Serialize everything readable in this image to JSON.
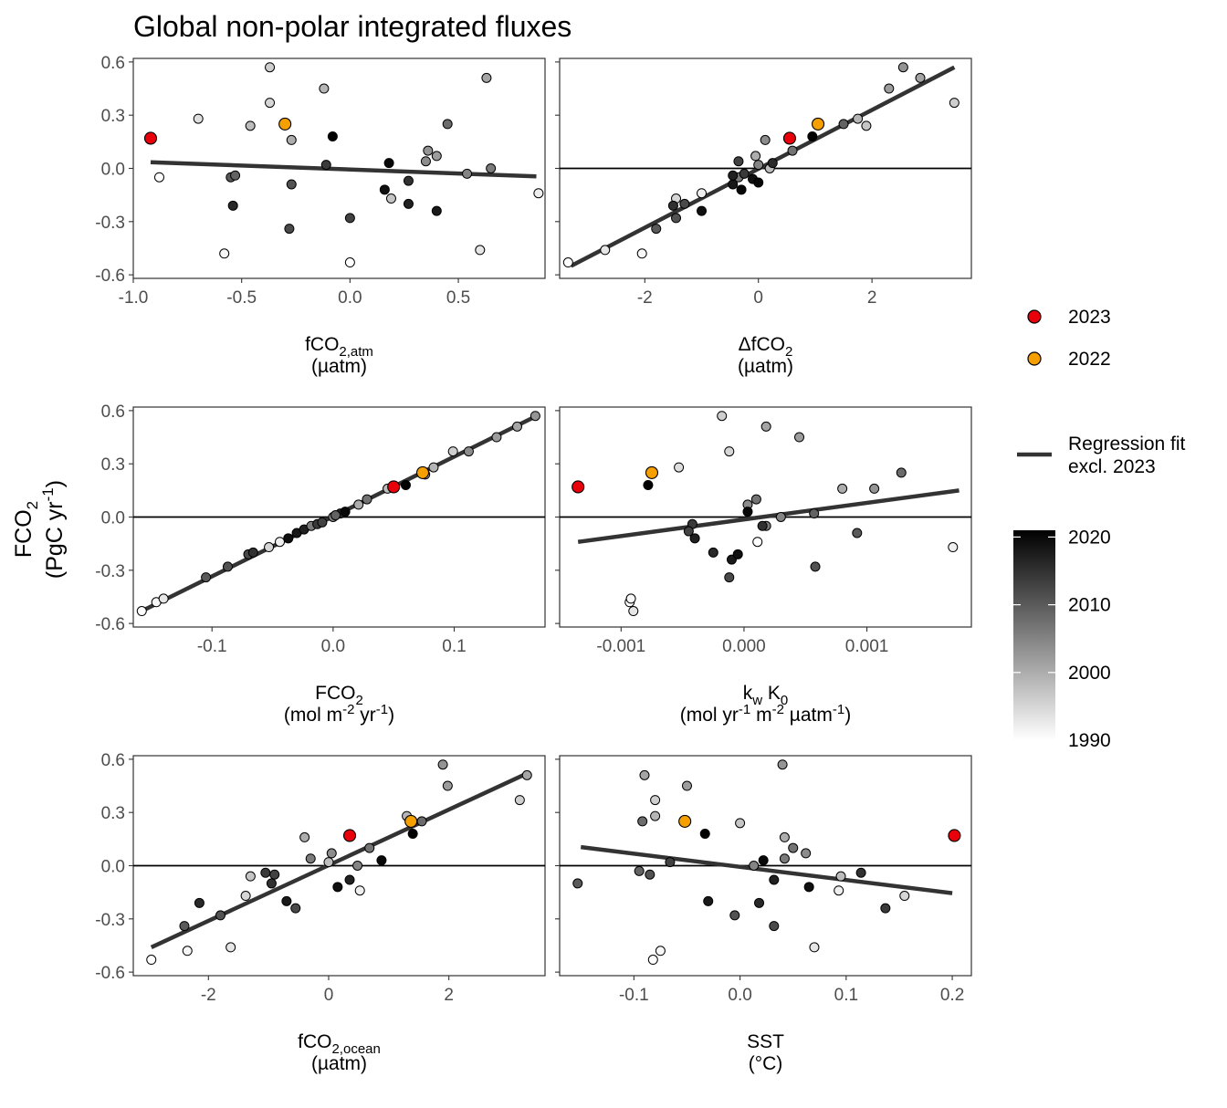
{
  "title": "Global non-polar integrated fluxes",
  "y_axis": {
    "label_main": "FCO",
    "label_sub": "2",
    "label_unit_main": "(PgC yr",
    "label_unit_sup": "-1",
    "label_unit_end": ")"
  },
  "legend": {
    "points": [
      {
        "label": "2023",
        "color": "#e8000b"
      },
      {
        "label": "2022",
        "color": "#f5a000"
      }
    ],
    "line": {
      "label_line1": "Regression fit",
      "label_line2": "excl. 2023",
      "color": "#333333"
    },
    "colorbar": {
      "ticks": [
        "2020",
        "2010",
        "2000",
        "1990"
      ],
      "range": [
        1990,
        2021
      ],
      "low_color": "#ffffff",
      "high_color": "#000000"
    }
  },
  "panels": [
    {
      "xlabel_html": "fCO<tspan dy='6' font-size='15'>2,atm</tspan>",
      "xunit": "(µatm)"
    },
    {
      "xlabel_html": "ΔfCO<tspan dy='6' font-size='15'>2</tspan>",
      "xunit": "(µatm)"
    },
    {
      "xlabel_html": "FCO<tspan dy='6' font-size='15'>2</tspan>",
      "xunit_html": "(mol m<tspan dy='-8' font-size='15'>-2</tspan><tspan dy='8'> yr</tspan><tspan dy='-8' font-size='15'>-1</tspan><tspan dy='8'>)</tspan>"
    },
    {
      "xlabel_html": "k<tspan dy='6' font-size='15'>w</tspan><tspan dy='-6'> K</tspan><tspan dy='6' font-size='15'>0</tspan>",
      "xunit_html": "(mol yr<tspan dy='-8' font-size='15'>-1</tspan><tspan dy='8'> m</tspan><tspan dy='-8' font-size='15'>-2</tspan><tspan dy='8'> µatm</tspan><tspan dy='-8' font-size='15'>-1</tspan><tspan dy='8'>)</tspan>"
    },
    {
      "xlabel_html": "fCO<tspan dy='6' font-size='15'>2,ocean</tspan>",
      "xunit": "(µatm)"
    },
    {
      "xlabel_html": "SST",
      "xunit": "(°C)"
    }
  ],
  "chart_data": [
    {
      "type": "scatter",
      "xlim": [
        -1.0,
        0.9
      ],
      "ylim": [
        -0.62,
        0.62
      ],
      "xticks": [
        -1.0,
        -0.5,
        0.0,
        0.5
      ],
      "xtick_labels": [
        "-1.0",
        "-0.5",
        "0.0",
        "0.5"
      ],
      "yticks": [
        -0.6,
        -0.3,
        0.0,
        0.3,
        0.6
      ],
      "ytick_labels": [
        "-0.6",
        "-0.3",
        "0.0",
        "0.3",
        "0.6"
      ],
      "zero_line": false,
      "fit": {
        "x": [
          -0.92,
          0.86
        ],
        "y": [
          0.035,
          -0.045
        ]
      },
      "highlight": {
        "2023": [
          -0.92,
          0.17
        ],
        "2022": [
          -0.3,
          0.25
        ]
      },
      "points": [
        [
          -0.88,
          -0.05,
          1990
        ],
        [
          -0.37,
          0.57,
          1996
        ],
        [
          -0.7,
          0.28,
          1994
        ],
        [
          -0.46,
          0.24,
          1998
        ],
        [
          -0.37,
          0.37,
          1995
        ],
        [
          -0.12,
          0.45,
          1999
        ],
        [
          0.63,
          0.51,
          2001
        ],
        [
          -0.58,
          -0.48,
          1991
        ],
        [
          0.0,
          -0.53,
          1990
        ],
        [
          0.6,
          -0.46,
          1993
        ],
        [
          0.87,
          -0.14,
          1992
        ],
        [
          0.19,
          -0.17,
          1997
        ],
        [
          -0.27,
          0.16,
          2000
        ],
        [
          0.36,
          0.1,
          2003
        ],
        [
          0.4,
          0.07,
          2002
        ],
        [
          0.35,
          0.04,
          2004
        ],
        [
          0.54,
          -0.03,
          2005
        ],
        [
          0.65,
          0.0,
          2006
        ],
        [
          0.45,
          0.25,
          2008
        ],
        [
          -0.55,
          -0.05,
          2010
        ],
        [
          -0.53,
          -0.04,
          2009
        ],
        [
          -0.27,
          -0.09,
          2011
        ],
        [
          -0.28,
          -0.34,
          2012
        ],
        [
          -0.11,
          0.02,
          2014
        ],
        [
          0.0,
          -0.28,
          2013
        ],
        [
          -0.54,
          -0.21,
          2016
        ],
        [
          0.27,
          -0.07,
          2015
        ],
        [
          0.27,
          -0.2,
          2017
        ],
        [
          0.4,
          -0.24,
          2018
        ],
        [
          0.16,
          -0.12,
          2019
        ],
        [
          0.18,
          0.03,
          2020
        ],
        [
          -0.08,
          0.18,
          2021
        ]
      ]
    },
    {
      "type": "scatter",
      "xlim": [
        -3.5,
        3.75
      ],
      "ylim": [
        -0.62,
        0.62
      ],
      "xticks": [
        -2,
        0,
        2
      ],
      "xtick_labels": [
        "-2",
        "0",
        "2"
      ],
      "yticks": [
        -0.6,
        -0.3,
        0.0,
        0.3,
        0.6
      ],
      "ytick_labels": [],
      "zero_line": true,
      "fit": {
        "x": [
          -3.3,
          3.45
        ],
        "y": [
          -0.55,
          0.57
        ]
      },
      "highlight": {
        "2023": [
          0.55,
          0.17
        ],
        "2022": [
          1.05,
          0.25
        ]
      },
      "points": [
        [
          -3.35,
          -0.53,
          1990
        ],
        [
          -2.7,
          -0.46,
          1993
        ],
        [
          -2.05,
          -0.48,
          1991
        ],
        [
          -1.45,
          -0.17,
          1995
        ],
        [
          -1.0,
          -0.14,
          1992
        ],
        [
          0.2,
          0.0,
          1998
        ],
        [
          1.9,
          0.24,
          1997
        ],
        [
          3.45,
          0.37,
          1996
        ],
        [
          1.75,
          0.28,
          1999
        ],
        [
          2.85,
          0.51,
          2001
        ],
        [
          2.55,
          0.57,
          2003
        ],
        [
          2.3,
          0.45,
          2002
        ],
        [
          -0.05,
          0.07,
          2000
        ],
        [
          0.12,
          0.16,
          2004
        ],
        [
          -0.35,
          -0.05,
          2006
        ],
        [
          0.0,
          0.02,
          2005
        ],
        [
          0.6,
          0.1,
          2007
        ],
        [
          1.5,
          0.25,
          2009
        ],
        [
          -1.8,
          -0.34,
          2010
        ],
        [
          -1.45,
          -0.28,
          2011
        ],
        [
          -1.3,
          -0.2,
          2012
        ],
        [
          -0.25,
          -0.03,
          2014
        ],
        [
          -0.35,
          0.04,
          2013
        ],
        [
          -1.5,
          -0.21,
          2015
        ],
        [
          0.25,
          0.03,
          2016
        ],
        [
          -0.45,
          -0.09,
          2018
        ],
        [
          -1.0,
          -0.24,
          2019
        ],
        [
          -0.3,
          -0.12,
          2020
        ],
        [
          -0.45,
          -0.04,
          2017
        ],
        [
          -0.1,
          -0.06,
          2019
        ],
        [
          0.0,
          -0.08,
          2020
        ],
        [
          0.95,
          0.18,
          2021
        ]
      ]
    },
    {
      "type": "scatter",
      "xlim": [
        -0.165,
        0.175
      ],
      "ylim": [
        -0.62,
        0.62
      ],
      "xticks": [
        -0.1,
        0.0,
        0.1
      ],
      "xtick_labels": [
        "-0.1",
        "0.0",
        "0.1"
      ],
      "yticks": [
        -0.6,
        -0.3,
        0.0,
        0.3,
        0.6
      ],
      "ytick_labels": [
        "-0.6",
        "-0.3",
        "0.0",
        "0.3",
        "0.6"
      ],
      "zero_line": true,
      "fit": {
        "x": [
          -0.158,
          0.168
        ],
        "y": [
          -0.53,
          0.57
        ]
      },
      "highlight": {
        "2023": [
          0.05,
          0.17
        ],
        "2022": [
          0.074,
          0.25
        ]
      },
      "points": [
        [
          -0.158,
          -0.53,
          1990
        ],
        [
          -0.146,
          -0.48,
          1991
        ],
        [
          -0.14,
          -0.46,
          1993
        ],
        [
          -0.105,
          -0.34,
          2010
        ],
        [
          -0.087,
          -0.28,
          2011
        ],
        [
          -0.07,
          -0.21,
          2012
        ],
        [
          -0.066,
          -0.2,
          2015
        ],
        [
          -0.053,
          -0.17,
          1995
        ],
        [
          -0.044,
          -0.14,
          1992
        ],
        [
          -0.037,
          -0.12,
          2019
        ],
        [
          -0.03,
          -0.09,
          2018
        ],
        [
          -0.024,
          -0.07,
          2017
        ],
        [
          -0.018,
          -0.05,
          2006
        ],
        [
          -0.013,
          -0.04,
          2014
        ],
        [
          -0.009,
          -0.03,
          2013
        ],
        [
          0.0,
          0.0,
          2005
        ],
        [
          0.006,
          0.02,
          2016
        ],
        [
          0.01,
          0.03,
          2020
        ],
        [
          0.021,
          0.07,
          2000
        ],
        [
          0.028,
          0.1,
          2007
        ],
        [
          0.06,
          0.18,
          2021
        ],
        [
          0.083,
          0.28,
          1999
        ],
        [
          0.076,
          0.24,
          1997
        ],
        [
          0.099,
          0.37,
          1996
        ],
        [
          0.112,
          0.37,
          2004
        ],
        [
          0.135,
          0.45,
          2002
        ],
        [
          0.152,
          0.51,
          2001
        ],
        [
          0.167,
          0.57,
          2003
        ],
        [
          0.045,
          0.16,
          1998
        ],
        [
          0.002,
          0.01,
          2009
        ]
      ]
    },
    {
      "type": "scatter",
      "xlim": [
        -0.0015,
        0.00185
      ],
      "ylim": [
        -0.62,
        0.62
      ],
      "xticks": [
        -0.001,
        0.0,
        0.001
      ],
      "xtick_labels": [
        "-0.001",
        "0.000",
        "0.001"
      ],
      "yticks": [
        -0.6,
        -0.3,
        0.0,
        0.3,
        0.6
      ],
      "ytick_labels": [],
      "zero_line": true,
      "fit": {
        "x": [
          -0.00135,
          0.00175
        ],
        "y": [
          -0.14,
          0.15
        ]
      },
      "highlight": {
        "2023": [
          -0.00135,
          0.17
        ],
        "2022": [
          -0.00075,
          0.25
        ]
      },
      "points": [
        [
          -0.00093,
          -0.48,
          1990
        ],
        [
          -0.00092,
          -0.46,
          1991
        ],
        [
          -0.0009,
          -0.53,
          1993
        ],
        [
          -0.00053,
          0.28,
          1994
        ],
        [
          -0.00018,
          0.57,
          1996
        ],
        [
          -0.00012,
          0.37,
          1995
        ],
        [
          0.00018,
          0.51,
          2001
        ],
        [
          0.00045,
          0.45,
          2002
        ],
        [
          0.00128,
          0.25,
          2008
        ],
        [
          0.0017,
          -0.17,
          1992
        ],
        [
          0.00011,
          -0.14,
          1990
        ],
        [
          0.0008,
          0.16,
          2000
        ],
        [
          0.00106,
          0.16,
          2003
        ],
        [
          0.0003,
          0.0,
          2005
        ],
        [
          0.00018,
          -0.05,
          2006
        ],
        [
          3e-05,
          0.07,
          2004
        ],
        [
          0.0001,
          0.1,
          2007
        ],
        [
          0.00057,
          0.02,
          2009
        ],
        [
          0.00092,
          -0.09,
          2010
        ],
        [
          -0.00012,
          -0.34,
          2012
        ],
        [
          0.00058,
          -0.28,
          2011
        ],
        [
          -0.00042,
          -0.04,
          2014
        ],
        [
          -0.00045,
          -0.08,
          2013
        ],
        [
          0.00015,
          -0.05,
          2015
        ],
        [
          -0.0004,
          -0.12,
          2017
        ],
        [
          -0.00025,
          -0.2,
          2016
        ],
        [
          -0.0001,
          -0.24,
          2018
        ],
        [
          -5e-05,
          -0.21,
          2019
        ],
        [
          3e-05,
          0.03,
          2020
        ],
        [
          -0.00078,
          0.18,
          2021
        ]
      ]
    },
    {
      "type": "scatter",
      "xlim": [
        -3.25,
        3.6
      ],
      "ylim": [
        -0.62,
        0.62
      ],
      "xticks": [
        -2,
        0,
        2
      ],
      "xtick_labels": [
        "-2",
        "0",
        "2"
      ],
      "yticks": [
        -0.6,
        -0.3,
        0.0,
        0.3,
        0.6
      ],
      "ytick_labels": [
        "-0.6",
        "-0.3",
        "0.0",
        "0.3",
        "0.6"
      ],
      "zero_line": true,
      "fit": {
        "x": [
          -2.95,
          3.3
        ],
        "y": [
          -0.46,
          0.52
        ]
      },
      "highlight": {
        "2023": [
          0.35,
          0.17
        ],
        "2022": [
          1.37,
          0.25
        ]
      },
      "points": [
        [
          -2.95,
          -0.53,
          1990
        ],
        [
          -2.35,
          -0.48,
          1991
        ],
        [
          -1.63,
          -0.46,
          1993
        ],
        [
          -1.38,
          -0.17,
          1995
        ],
        [
          -1.3,
          -0.06,
          1997
        ],
        [
          0.52,
          -0.14,
          1992
        ],
        [
          0.0,
          0.02,
          1998
        ],
        [
          1.3,
          0.28,
          1999
        ],
        [
          1.9,
          0.57,
          2003
        ],
        [
          1.98,
          0.45,
          2002
        ],
        [
          3.18,
          0.37,
          1996
        ],
        [
          3.3,
          0.51,
          2001
        ],
        [
          -0.4,
          0.16,
          2000
        ],
        [
          0.05,
          0.07,
          2004
        ],
        [
          0.48,
          0.0,
          2005
        ],
        [
          0.68,
          0.1,
          2007
        ],
        [
          1.55,
          0.25,
          2008
        ],
        [
          -0.3,
          0.04,
          2006
        ],
        [
          -2.4,
          -0.34,
          2010
        ],
        [
          -1.8,
          -0.28,
          2011
        ],
        [
          -0.55,
          -0.24,
          2012
        ],
        [
          -1.05,
          -0.04,
          2014
        ],
        [
          -0.9,
          -0.05,
          2013
        ],
        [
          -0.95,
          -0.1,
          2015
        ],
        [
          -2.15,
          -0.21,
          2016
        ],
        [
          0.35,
          -0.08,
          2017
        ],
        [
          -0.7,
          -0.2,
          2018
        ],
        [
          0.15,
          -0.12,
          2019
        ],
        [
          0.88,
          0.03,
          2020
        ],
        [
          1.4,
          0.18,
          2021
        ]
      ]
    },
    {
      "type": "scatter",
      "xlim": [
        -0.17,
        0.218
      ],
      "ylim": [
        -0.62,
        0.62
      ],
      "xticks": [
        -0.1,
        0.0,
        0.1,
        0.2
      ],
      "xtick_labels": [
        "-0.1",
        "0.0",
        "0.1",
        "0.2"
      ],
      "yticks": [
        -0.6,
        -0.3,
        0.0,
        0.3,
        0.6
      ],
      "ytick_labels": [],
      "zero_line": true,
      "fit": {
        "x": [
          -0.15,
          0.2
        ],
        "y": [
          0.105,
          -0.155
        ]
      },
      "highlight": {
        "2023": [
          0.202,
          0.17
        ],
        "2022": [
          -0.052,
          0.25
        ]
      },
      "points": [
        [
          -0.082,
          -0.53,
          1990
        ],
        [
          -0.075,
          -0.48,
          1991
        ],
        [
          0.07,
          -0.46,
          1993
        ],
        [
          -0.09,
          0.51,
          2001
        ],
        [
          -0.05,
          0.45,
          2002
        ],
        [
          -0.08,
          0.28,
          1999
        ],
        [
          -0.08,
          0.37,
          1996
        ],
        [
          0.0,
          0.24,
          1997
        ],
        [
          0.04,
          0.57,
          2003
        ],
        [
          0.155,
          -0.17,
          1995
        ],
        [
          0.093,
          -0.14,
          1992
        ],
        [
          0.095,
          -0.06,
          1998
        ],
        [
          0.042,
          0.16,
          2000
        ],
        [
          0.062,
          0.07,
          2004
        ],
        [
          0.013,
          0.0,
          2005
        ],
        [
          0.05,
          0.1,
          2007
        ],
        [
          -0.092,
          0.25,
          2008
        ],
        [
          0.042,
          0.04,
          2006
        ],
        [
          -0.153,
          -0.1,
          2010
        ],
        [
          -0.095,
          -0.03,
          2009
        ],
        [
          -0.085,
          -0.05,
          2011
        ],
        [
          -0.066,
          0.02,
          2013
        ],
        [
          0.032,
          -0.34,
          2012
        ],
        [
          -0.005,
          -0.28,
          2011
        ],
        [
          0.137,
          -0.24,
          2014
        ],
        [
          0.018,
          -0.21,
          2016
        ],
        [
          -0.03,
          -0.2,
          2018
        ],
        [
          0.065,
          -0.12,
          2019
        ],
        [
          0.032,
          -0.08,
          2017
        ],
        [
          0.114,
          -0.04,
          2015
        ],
        [
          0.022,
          0.03,
          2020
        ],
        [
          -0.033,
          0.18,
          2021
        ]
      ]
    }
  ]
}
